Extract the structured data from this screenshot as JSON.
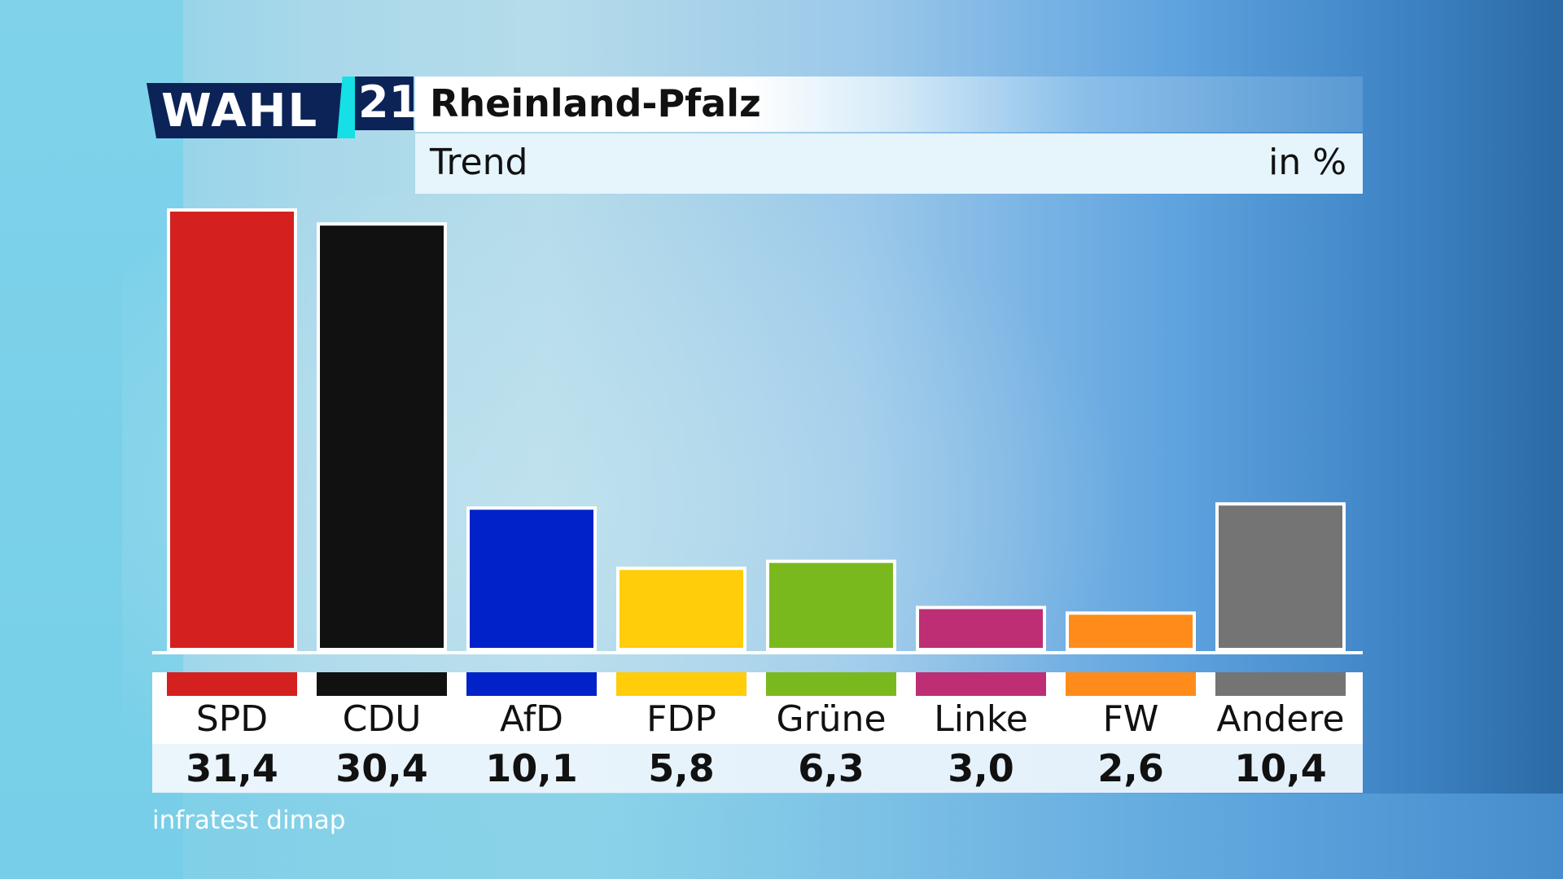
{
  "header": {
    "logo_text": "WAHL",
    "logo_number": "21",
    "title": "Rheinland-Pfalz",
    "subtitle": "Trend",
    "unit": "in %"
  },
  "source": "infratest dimap",
  "chart_data": {
    "type": "bar",
    "title": "Rheinland-Pfalz",
    "subtitle": "Trend",
    "ylabel": "in %",
    "ylim": [
      0,
      31.4
    ],
    "grid": false,
    "categories": [
      "SPD",
      "CDU",
      "AfD",
      "FDP",
      "Grüne",
      "Linke",
      "FW",
      "Andere"
    ],
    "values": [
      31.4,
      30.4,
      10.1,
      5.8,
      6.3,
      3.0,
      2.6,
      10.4
    ],
    "value_labels": [
      "31,4",
      "30,4",
      "10,1",
      "5,8",
      "6,3",
      "3,0",
      "2,6",
      "10,4"
    ],
    "colors": [
      "#d52020",
      "#111111",
      "#0022c8",
      "#ffcd0a",
      "#7ab91e",
      "#bd2e74",
      "#ff8c1a",
      "#747474"
    ]
  }
}
